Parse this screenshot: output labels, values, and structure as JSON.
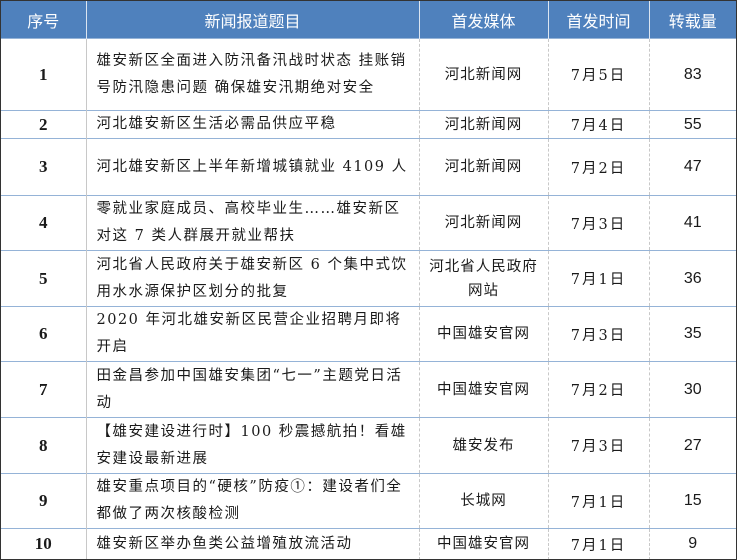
{
  "table": {
    "headers": [
      "序号",
      "新闻报道题目",
      "首发媒体",
      "首发时间",
      "转载量"
    ],
    "header_color": "#4f81bd",
    "rows": [
      {
        "no": "1",
        "title": "雄安新区全面进入防汛备汛战时状态 挂账销号防汛隐患问题 确保雄安汛期绝对安全",
        "media": "河北新闻网",
        "date": "7月5日",
        "count": "83"
      },
      {
        "no": "2",
        "title": "河北雄安新区生活必需品供应平稳",
        "media": "河北新闻网",
        "date": "7月4日",
        "count": "55"
      },
      {
        "no": "3",
        "title": "河北雄安新区上半年新增城镇就业 4109 人",
        "media": "河北新闻网",
        "date": "7月2日",
        "count": "47"
      },
      {
        "no": "4",
        "title": "零就业家庭成员、高校毕业生……雄安新区对这 7 类人群展开就业帮扶",
        "media": "河北新闻网",
        "date": "7月3日",
        "count": "41"
      },
      {
        "no": "5",
        "title": "河北省人民政府关于雄安新区 6 个集中式饮用水水源保护区划分的批复",
        "media": "河北省人民政府网站",
        "date": "7月1日",
        "count": "36"
      },
      {
        "no": "6",
        "title": "2020 年河北雄安新区民营企业招聘月即将开启",
        "media": "中国雄安官网",
        "date": "7月3日",
        "count": "35"
      },
      {
        "no": "7",
        "title": "田金昌参加中国雄安集团“七一”主题党日活动",
        "media": "中国雄安官网",
        "date": "7月2日",
        "count": "30"
      },
      {
        "no": "8",
        "title": "【雄安建设进行时】100 秒震撼航拍！看雄安建设最新进展",
        "media": "雄安发布",
        "date": "7月3日",
        "count": "27"
      },
      {
        "no": "9",
        "title": "雄安重点项目的“硬核”防疫①：建设者们全都做了两次核酸检测",
        "media": "长城网",
        "date": "7月1日",
        "count": "15"
      },
      {
        "no": "10",
        "title": "雄安新区举办鱼类公益增殖放流活动",
        "media": "中国雄安官网",
        "date": "7月1日",
        "count": "9"
      }
    ]
  }
}
